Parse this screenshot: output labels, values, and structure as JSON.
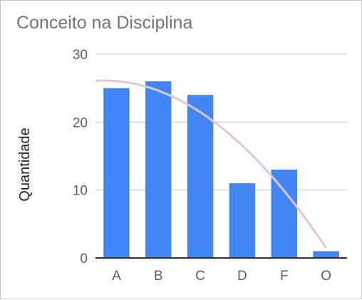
{
  "chart_data": {
    "type": "bar",
    "title": "Conceito na Disciplina",
    "xlabel": "",
    "ylabel": "Quantidade",
    "categories": [
      "A",
      "B",
      "C",
      "D",
      "F",
      "O"
    ],
    "series": [
      {
        "values": [
          25,
          26,
          24,
          11,
          13,
          1
        ]
      }
    ],
    "ylim": [
      0,
      30
    ],
    "yticks": [
      0,
      10,
      20,
      30
    ],
    "grid": true,
    "legend": "none",
    "trendline": {
      "type": "polynomial",
      "color": "#e2c6d6"
    },
    "colors": {
      "bar": "#4285f4",
      "grid": "#cccccc",
      "axis": "#333333"
    }
  }
}
